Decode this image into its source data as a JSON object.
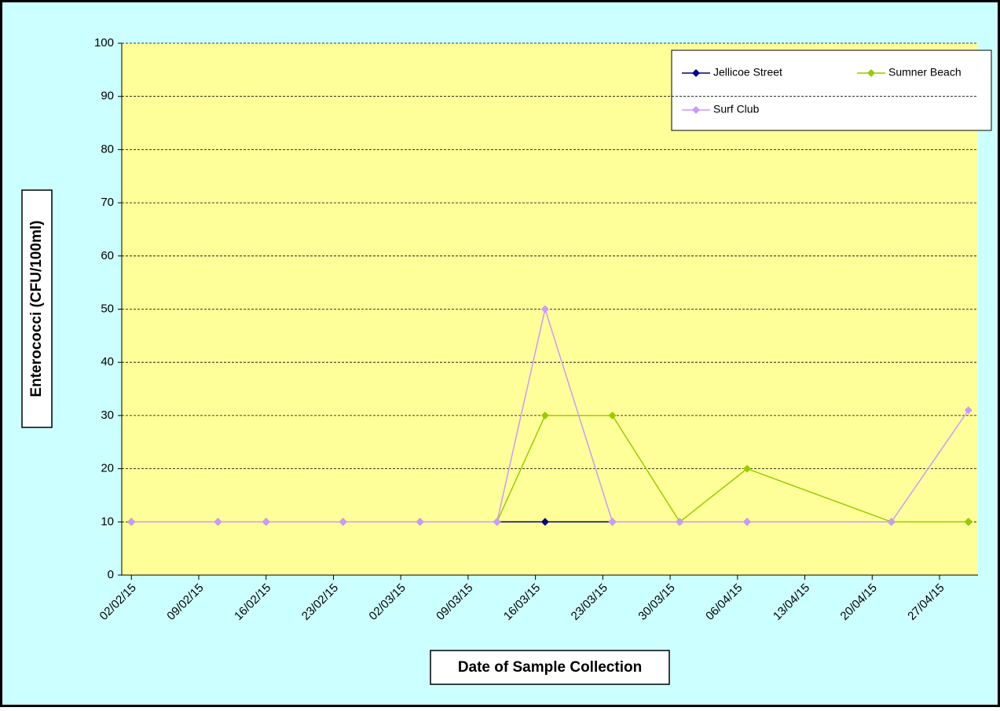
{
  "chart_data": {
    "type": "line",
    "y_label": "Enterococci (CFU/100ml)",
    "x_label": "Date of Sample Collection",
    "x": [
      "2015-02-02",
      "2015-02-11",
      "2015-02-16",
      "2015-02-24",
      "2015-03-04",
      "2015-03-12",
      "2015-03-17",
      "2015-03-24",
      "2015-03-31",
      "2015-04-07",
      "2015-04-22",
      "2015-04-30"
    ],
    "series": [
      {
        "name": "Jellicoe Street",
        "color": "#000080",
        "values": [
          10,
          10,
          10,
          10,
          10,
          10,
          10,
          10,
          10,
          10,
          10,
          10
        ]
      },
      {
        "name": "Sumner Beach",
        "color": "#99cc00",
        "values": [
          10,
          10,
          10,
          10,
          10,
          10,
          30,
          30,
          10,
          20,
          10,
          10
        ]
      },
      {
        "name": "Surf Club",
        "color": "#cc99ff",
        "values": [
          10,
          10,
          10,
          10,
          10,
          10,
          50,
          10,
          10,
          10,
          10,
          31
        ]
      }
    ],
    "xlim": [
      "2015-02-01",
      "2015-05-01"
    ],
    "xticks": [
      {
        "value": "2015-02-02",
        "label": "02/02/15"
      },
      {
        "value": "2015-02-09",
        "label": "09/02/15"
      },
      {
        "value": "2015-02-16",
        "label": "16/02/15"
      },
      {
        "value": "2015-02-23",
        "label": "23/02/15"
      },
      {
        "value": "2015-03-02",
        "label": "02/03/15"
      },
      {
        "value": "2015-03-09",
        "label": "09/03/15"
      },
      {
        "value": "2015-03-16",
        "label": "16/03/15"
      },
      {
        "value": "2015-03-23",
        "label": "23/03/15"
      },
      {
        "value": "2015-03-30",
        "label": "30/03/15"
      },
      {
        "value": "2015-04-06",
        "label": "06/04/15"
      },
      {
        "value": "2015-04-13",
        "label": "13/04/15"
      },
      {
        "value": "2015-04-20",
        "label": "20/04/15"
      },
      {
        "value": "2015-04-27",
        "label": "27/04/15"
      }
    ],
    "ylim": [
      0,
      100
    ],
    "yticks": [
      0,
      10,
      20,
      30,
      40,
      50,
      60,
      70,
      80,
      90,
      100
    ],
    "grid": true,
    "legend": "top-right"
  }
}
